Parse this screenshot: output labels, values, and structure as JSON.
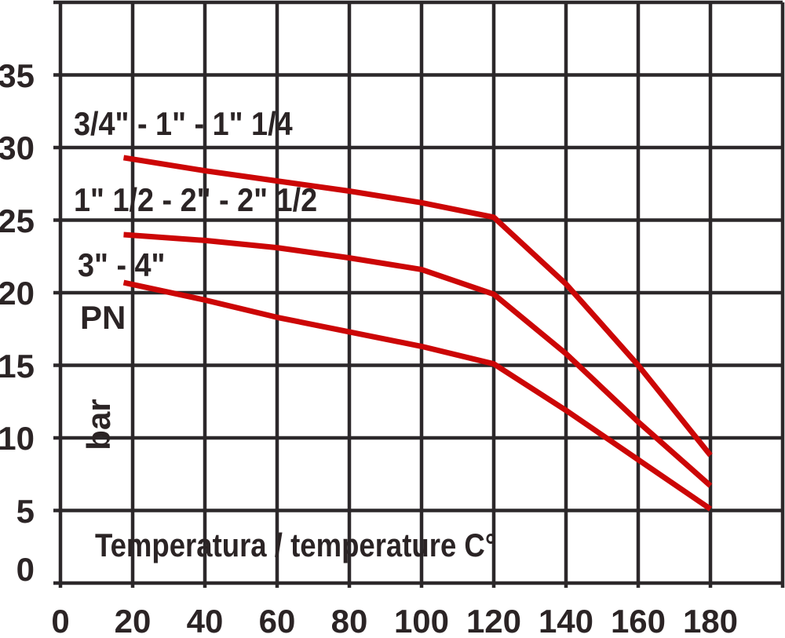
{
  "chart_data": {
    "type": "line",
    "title": "",
    "xlabel": "Temperatura / temperature C°",
    "ylabel": "PN",
    "ylabel_unit": "bar",
    "xlim": [
      0,
      200
    ],
    "ylim": [
      0,
      40
    ],
    "x_ticks": [
      0,
      20,
      40,
      60,
      80,
      100,
      120,
      140,
      160,
      180
    ],
    "y_ticks": [
      0,
      5,
      10,
      15,
      20,
      25,
      30,
      35
    ],
    "grid": true,
    "legend_position": "inline-left-labels",
    "line_color": "#cc0606",
    "grid_color": "#2c282a",
    "text_color": "#2b2425",
    "x": [
      17.5,
      40,
      60,
      80,
      100,
      120,
      140,
      160,
      180
    ],
    "series": [
      {
        "name": "3/4\" - 1\" - 1\" 1/4",
        "values": [
          29.3,
          28.4,
          27.7,
          27.0,
          26.2,
          25.2,
          20.6,
          15.0,
          8.8
        ]
      },
      {
        "name": "1\" 1/2 - 2\" - 2\" 1/2",
        "values": [
          24.0,
          23.6,
          23.1,
          22.4,
          21.6,
          19.9,
          15.8,
          11.1,
          6.7
        ]
      },
      {
        "name": "3\" - 4\"",
        "values": [
          20.7,
          19.5,
          18.3,
          17.3,
          16.3,
          15.1,
          11.9,
          8.5,
          5.1
        ]
      }
    ]
  }
}
